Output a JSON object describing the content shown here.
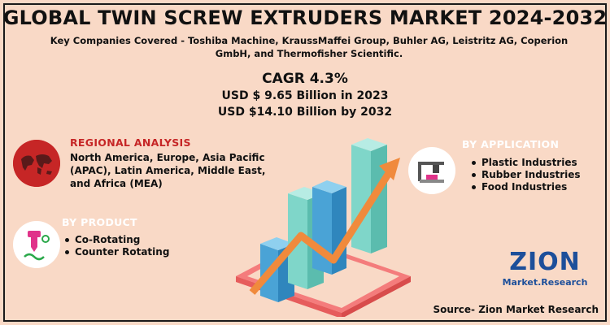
{
  "title": "GLOBAL TWIN SCREW EXTRUDERS MARKET 2024-2032",
  "subtitle": "Key Companies Covered - Toshiba Machine, KraussMaffei Group, Buhler AG, Leistritz AG, Coperion GmbH, and Thermofisher Scientific.",
  "cagr": "CAGR 4.3%",
  "stats": [
    "USD $ 9.65 Billion in 2023",
    "USD $14.10 Billion  by 2032"
  ],
  "regional": {
    "heading": "REGIONAL ANALYSIS",
    "text": "North America, Europe, Asia Pacific (APAC), Latin America, Middle East, and Africa (MEA)"
  },
  "product": {
    "heading": "BY PRODUCT",
    "items": [
      "Co-Rotating",
      "Counter Rotating"
    ]
  },
  "application": {
    "heading": "BY APPLICATION",
    "items": [
      "Plastic Industries",
      "Rubber Industries",
      "Food Industries"
    ]
  },
  "logo": {
    "word": "ZION",
    "sub": "Market.Research"
  },
  "source": "Source- Zion Market Research",
  "colors": {
    "background": "#f9d9c6",
    "regional_heading": "#c62626",
    "product_heading": "#ffffff",
    "application_heading": "#ffffff",
    "bar_teal": "#7fd6c9",
    "bar_blue": "#4aa3d6",
    "arrow": "#f08a3c",
    "base": "#f47c7c",
    "logo_blue": "#1d4f9a"
  },
  "icons": [
    "world-map-icon",
    "extruder-icon",
    "3d-printer-icon",
    "growth-arrow-icon"
  ]
}
